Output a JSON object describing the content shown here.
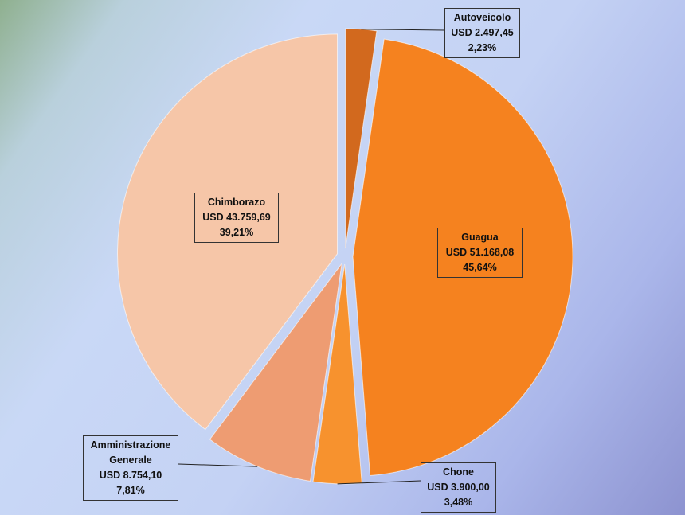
{
  "chart_data": {
    "type": "pie",
    "exploded": true,
    "slices": [
      {
        "name": "Autoveicolo",
        "value": 2497.45,
        "value_label": "USD 2.497,45",
        "percent_label": "2,23%",
        "color": "#d2691e"
      },
      {
        "name": "Guagua",
        "value": 51168.08,
        "value_label": "USD 51.168,08",
        "percent_label": "45,64%",
        "color": "#f5821f"
      },
      {
        "name": "Chone",
        "value": 3900.0,
        "value_label": "USD 3.900,00",
        "percent_label": "3,48%",
        "color": "#f7922e"
      },
      {
        "name": "Amministrazione Generale",
        "name_lines": [
          "Amministrazione",
          "Generale"
        ],
        "value": 8754.1,
        "value_label": "USD 8.754,10",
        "percent_label": "7,81%",
        "color": "#ee9c72"
      },
      {
        "name": "Chimborazo",
        "value": 43759.69,
        "value_label": "USD 43.759,69",
        "percent_label": "39,21%",
        "color": "#f6c6a8"
      }
    ]
  }
}
